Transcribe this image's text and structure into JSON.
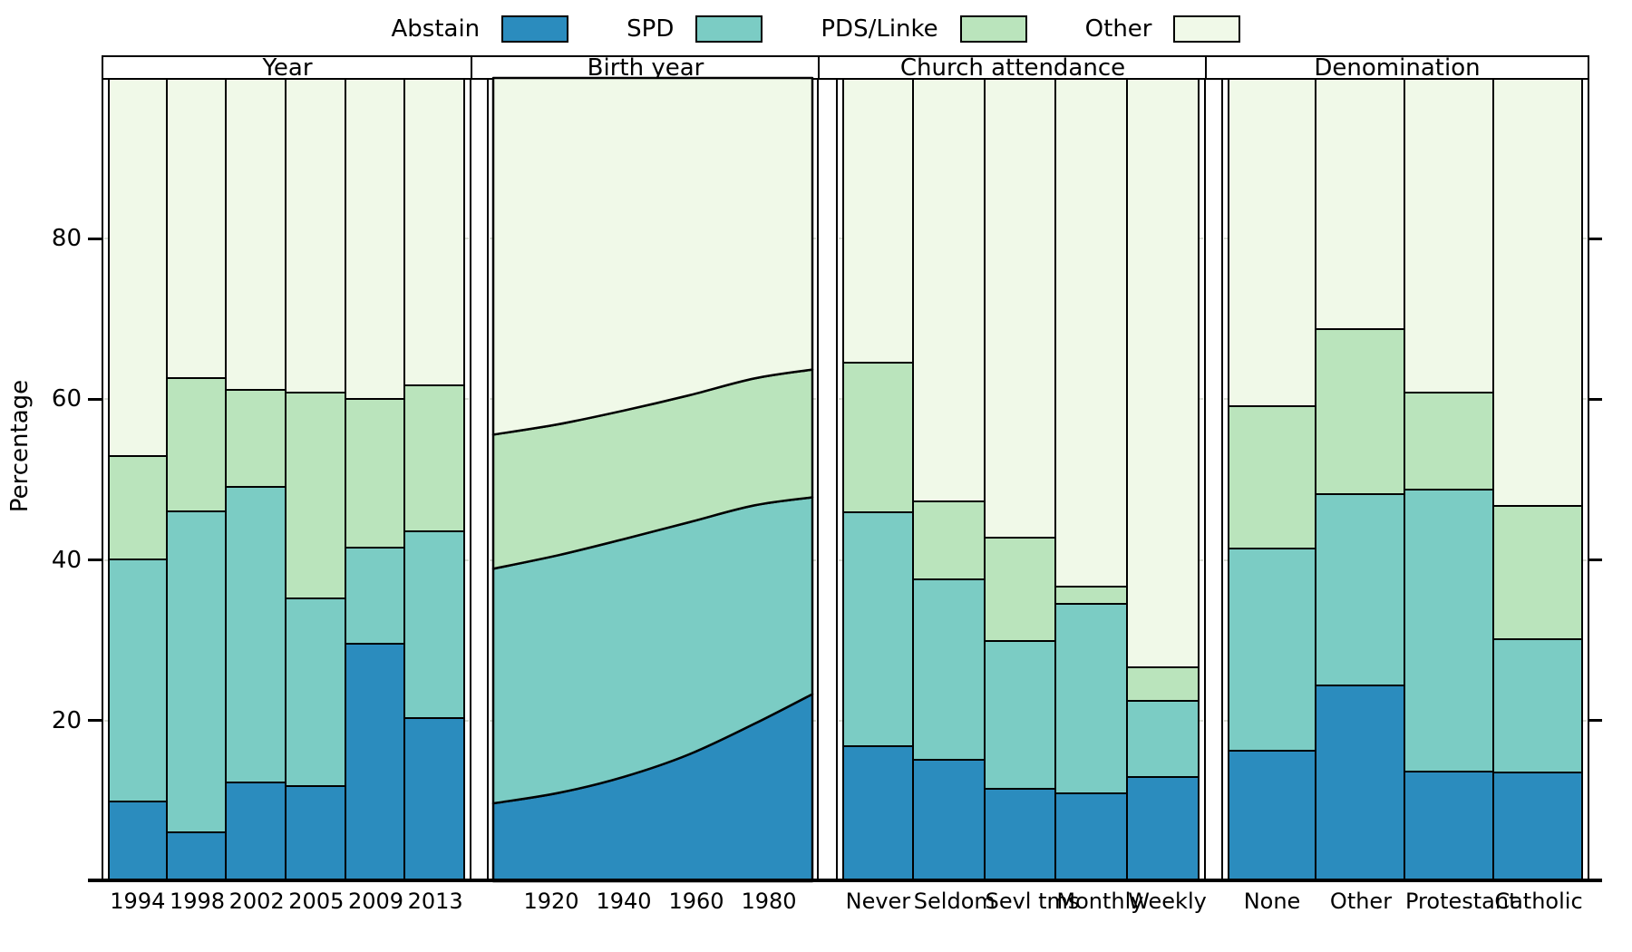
{
  "figure": {
    "background": "#ffffff",
    "ylabel": "Percentage"
  },
  "legend": {
    "items": [
      {
        "label": "Abstain",
        "color": "#2b8cbe"
      },
      {
        "label": "SPD",
        "color": "#7bccc4"
      },
      {
        "label": "PDS/Linke",
        "color": "#bae4bc"
      },
      {
        "label": "Other",
        "color": "#f0f9e8"
      }
    ]
  },
  "chart_data": {
    "type": "bar",
    "subtype": "stacked-percentage-multipanel",
    "title": "",
    "ylabel": "Percentage",
    "ylim": [
      0,
      100
    ],
    "yticks": [
      20,
      40,
      60,
      80
    ],
    "grid": "dashed-horizontal",
    "legend_position": "top",
    "series_names": [
      "Abstain",
      "SPD",
      "PDS/Linke",
      "Other"
    ],
    "colors": {
      "Abstain": "#2b8cbe",
      "SPD": "#7bccc4",
      "PDS/Linke": "#bae4bc",
      "Other": "#f0f9e8",
      "outline": "#000000"
    },
    "panels": [
      {
        "title": "Year",
        "kind": "bar",
        "categories": [
          "1994",
          "1998",
          "2002",
          "2005",
          "2009",
          "2013"
        ],
        "series": [
          {
            "name": "Abstain",
            "values": [
              10.0,
              6.2,
              12.4,
              12.0,
              29.7,
              20.4
            ]
          },
          {
            "name": "SPD",
            "values": [
              30.2,
              40.0,
              36.8,
              23.3,
              11.9,
              23.3
            ]
          },
          {
            "name": "PDS/Linke",
            "values": [
              12.8,
              16.6,
              12.1,
              25.7,
              18.6,
              18.2
            ]
          },
          {
            "name": "Other",
            "values": [
              47.0,
              37.2,
              38.7,
              39.0,
              39.8,
              38.1
            ]
          }
        ]
      },
      {
        "title": "Birth year",
        "kind": "area",
        "x": [
          1904,
          1922,
          1940,
          1958,
          1976,
          1992
        ],
        "xticks": [
          1920,
          1940,
          1960,
          1980
        ],
        "series": [
          {
            "name": "Abstain",
            "values": [
              9.7,
              11.0,
              13.0,
              15.8,
              19.6,
              23.3
            ]
          },
          {
            "name": "SPD",
            "values": [
              29.2,
              29.6,
              29.6,
              28.9,
              27.2,
              24.5
            ]
          },
          {
            "name": "PDS/Linke",
            "values": [
              16.7,
              16.3,
              16.0,
              15.8,
              15.8,
              15.9
            ]
          },
          {
            "name": "Other",
            "values": [
              44.4,
              43.1,
              41.4,
              39.5,
              37.4,
              36.3
            ]
          }
        ]
      },
      {
        "title": "Church attendance",
        "kind": "bar",
        "categories": [
          "Never",
          "Seldom",
          "Sevl tms",
          "Monthly",
          "Weekly"
        ],
        "series": [
          {
            "name": "Abstain",
            "values": [
              16.9,
              15.2,
              11.6,
              11.1,
              13.1
            ]
          },
          {
            "name": "SPD",
            "values": [
              29.2,
              22.5,
              18.4,
              23.5,
              9.5
            ]
          },
          {
            "name": "PDS/Linke",
            "values": [
              18.6,
              9.7,
              12.9,
              2.2,
              4.1
            ]
          },
          {
            "name": "Other",
            "values": [
              35.3,
              52.6,
              57.1,
              63.2,
              73.3
            ]
          }
        ]
      },
      {
        "title": "Denomination",
        "kind": "bar",
        "categories": [
          "None",
          "Other",
          "Protestant",
          "Catholic"
        ],
        "series": [
          {
            "name": "Abstain",
            "values": [
              16.4,
              24.5,
              13.8,
              13.7
            ]
          },
          {
            "name": "SPD",
            "values": [
              25.1,
              23.8,
              35.1,
              16.5
            ]
          },
          {
            "name": "PDS/Linke",
            "values": [
              17.8,
              20.5,
              12.1,
              16.6
            ]
          },
          {
            "name": "Other",
            "values": [
              40.7,
              31.2,
              39.0,
              53.2
            ]
          }
        ]
      }
    ]
  }
}
